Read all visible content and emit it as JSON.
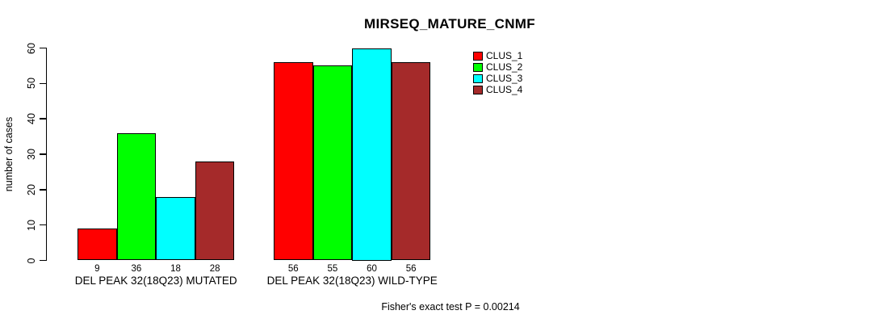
{
  "title": "MIRSEQ_MATURE_CNMF",
  "footer": "Fisher's exact test P = 0.00214",
  "chart_data": {
    "type": "bar",
    "title": "MIRSEQ_MATURE_CNMF",
    "xlabel": "",
    "ylabel": "number of cases",
    "ylim": [
      0,
      60
    ],
    "yticks": [
      0,
      10,
      20,
      30,
      40,
      50,
      60
    ],
    "grid": false,
    "legend_position": "top-right",
    "bars_grouped": true,
    "categories": [
      "DEL PEAK 32(18Q23) MUTATED",
      "DEL PEAK 32(18Q23) WILD-TYPE"
    ],
    "series": [
      {
        "name": "CLUS_1",
        "color": "#FF0000",
        "values": [
          9,
          56
        ]
      },
      {
        "name": "CLUS_2",
        "color": "#00FF00",
        "values": [
          36,
          55
        ]
      },
      {
        "name": "CLUS_3",
        "color": "#00FFFF",
        "values": [
          18,
          60
        ]
      },
      {
        "name": "CLUS_4",
        "color": "#A52A2A",
        "values": [
          28,
          56
        ]
      }
    ],
    "bar_value_labels": [
      [
        9,
        36,
        18,
        28
      ],
      [
        56,
        55,
        60,
        56
      ]
    ],
    "annotation": "Fisher's exact test P = 0.00214"
  }
}
